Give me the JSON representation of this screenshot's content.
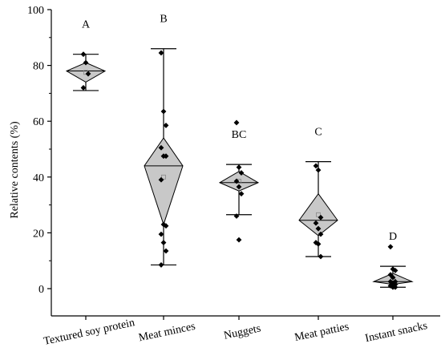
{
  "chart_data": {
    "type": "diamond-box-scatter",
    "ylabel": "Relative contents (%)",
    "ylim": [
      0,
      100
    ],
    "yticks": [
      0,
      20,
      40,
      60,
      80,
      100
    ],
    "grid": false,
    "colors": {
      "fill": "#c8c8c8",
      "stroke": "#000000",
      "point": "#000000",
      "mean_marker": "#888888"
    },
    "groups": [
      {
        "category": "Textured soy protein",
        "letter": "A",
        "whisker_low": 71,
        "whisker_high": 84,
        "q1": 74,
        "q3": 81,
        "median": 78,
        "mean": 77.5,
        "points": [
          84,
          81,
          77,
          72
        ]
      },
      {
        "category": "Meat minces",
        "letter": "B",
        "whisker_low": 8.5,
        "whisker_high": 86,
        "q1": 23,
        "q3": 54,
        "median": 44,
        "mean": 40,
        "points": [
          84.5,
          63.5,
          58.5,
          50.5,
          47.5,
          47.5,
          39,
          23,
          22.5,
          19.5,
          16.5,
          13.5,
          8.5
        ]
      },
      {
        "category": "Nuggets",
        "letter": "BC",
        "whisker_low": 26.5,
        "whisker_high": 44.5,
        "q1": 35,
        "q3": 42,
        "median": 38,
        "mean": 38.5,
        "points": [
          59.5,
          43.5,
          41.5,
          38.5,
          36.5,
          34,
          26,
          17.5
        ]
      },
      {
        "category": "Meat patties",
        "letter": "C",
        "whisker_low": 11.5,
        "whisker_high": 45.5,
        "q1": 19,
        "q3": 34,
        "median": 24.5,
        "mean": 26.5,
        "points": [
          44,
          42.5,
          25.5,
          23.5,
          21.5,
          19.5,
          16.5,
          16,
          11.5
        ]
      },
      {
        "category": "Instant snacks",
        "letter": "D",
        "whisker_low": 0.5,
        "whisker_high": 8,
        "q1": 1.5,
        "q3": 5.5,
        "median": 2.5,
        "mean": 3,
        "points": [
          15,
          7,
          6.5,
          5,
          4,
          2.5,
          2.5,
          2,
          1.5,
          1,
          0.5,
          0.5
        ]
      }
    ]
  }
}
